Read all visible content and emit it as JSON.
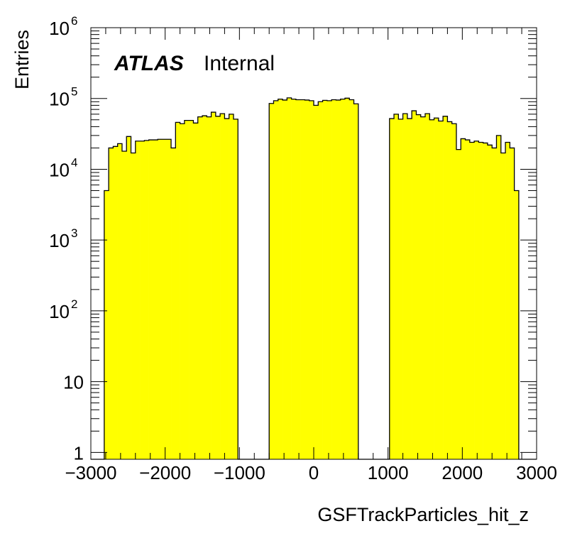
{
  "chart_data": {
    "type": "bar",
    "subtype": "histogram",
    "xlabel": "GSFTrackParticles_hit_z",
    "ylabel": "Entries",
    "xlim": [
      -3000,
      3000
    ],
    "ylim": [
      0.8,
      1000000
    ],
    "yscale": "log",
    "fill_color": "#ffff00",
    "line_color": "#000000",
    "grid": false,
    "legend": "none",
    "annotation": {
      "experiment": "ATLAS",
      "label": "Internal"
    },
    "x_tick_labels": [
      "−3000",
      "−2000",
      "−1000",
      "0",
      "1000",
      "2000",
      "3000"
    ],
    "y_tick_labels": [
      {
        "value": 1,
        "base": "1",
        "exp": ""
      },
      {
        "value": 10,
        "base": "10",
        "exp": ""
      },
      {
        "value": 100,
        "base": "10",
        "exp": "2"
      },
      {
        "value": 1000,
        "base": "10",
        "exp": "3"
      },
      {
        "value": 10000,
        "base": "10",
        "exp": "4"
      },
      {
        "value": 100000,
        "base": "10",
        "exp": "5"
      },
      {
        "value": 1000000,
        "base": "10",
        "exp": "6"
      }
    ],
    "bin_edges_start": -3000,
    "bin_width": 60,
    "counts": [
      0,
      0,
      0,
      5000,
      20000,
      21000,
      23000,
      18000,
      29000,
      17000,
      25000,
      25000,
      25500,
      26000,
      26000,
      26500,
      26500,
      26500,
      20000,
      46000,
      44000,
      49000,
      49000,
      45000,
      55000,
      57000,
      55000,
      64000,
      56000,
      61000,
      52000,
      60000,
      51000,
      0,
      0,
      0,
      0,
      0,
      0,
      0,
      85000,
      93000,
      98000,
      95000,
      102000,
      98000,
      96000,
      96000,
      95000,
      93000,
      80000,
      90000,
      94000,
      93000,
      96000,
      95000,
      98000,
      101000,
      96000,
      84000,
      0,
      0,
      0,
      0,
      0,
      0,
      0,
      52000,
      60000,
      51000,
      61000,
      52000,
      67000,
      59000,
      55000,
      61000,
      50000,
      53000,
      48000,
      56000,
      47000,
      44000,
      19000,
      27000,
      26000,
      24000,
      25000,
      24000,
      23500,
      22000,
      20000,
      30000,
      17000,
      24000,
      20000,
      5000,
      0,
      0,
      0,
      0
    ]
  }
}
